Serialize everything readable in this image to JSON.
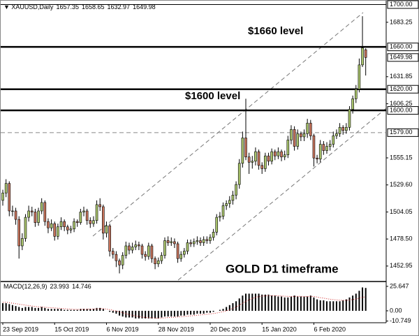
{
  "chart_data": {
    "type": "candlestick",
    "symbol": "XAUUSD,Daily",
    "annotations": [
      "$1660 level",
      "$1600 level",
      "GOLD D1 timeframe"
    ],
    "categories": [
      "23 Sep 2019",
      null,
      null,
      null,
      null,
      null,
      null,
      null,
      null,
      null,
      null,
      null,
      null,
      null,
      null,
      null,
      "15 Oct 2019",
      null,
      null,
      null,
      null,
      null,
      null,
      null,
      null,
      null,
      null,
      null,
      null,
      null,
      null,
      null,
      "6 Nov 2019",
      null,
      null,
      null,
      null,
      null,
      null,
      null,
      null,
      null,
      null,
      null,
      null,
      null,
      null,
      null,
      "28 Nov 2019",
      null,
      null,
      null,
      null,
      null,
      null,
      null,
      null,
      null,
      null,
      null,
      null,
      null,
      null,
      null,
      "20 Dec 2019",
      null,
      null,
      null,
      null,
      null,
      null,
      null,
      null,
      null,
      null,
      null,
      null,
      null,
      null,
      null,
      "15 Jan 2020",
      null,
      null,
      null,
      null,
      null,
      null,
      null,
      null,
      null,
      null,
      null,
      null,
      null,
      null,
      null,
      "6 Feb 2020",
      null,
      null,
      null,
      null,
      null,
      null,
      null,
      null,
      null,
      null,
      null,
      null,
      null,
      null,
      null,
      null
    ],
    "ohlc": [
      [
        1515,
        1525,
        1510,
        1522
      ],
      [
        1522,
        1535,
        1518,
        1531
      ],
      [
        1531,
        1533,
        1500,
        1505
      ],
      [
        1505,
        1510,
        1500,
        1505
      ],
      [
        1505,
        1508,
        1492,
        1497
      ],
      [
        1497,
        1500,
        1460,
        1472
      ],
      [
        1472,
        1484,
        1468,
        1479
      ],
      [
        1479,
        1502,
        1476,
        1499
      ],
      [
        1499,
        1510,
        1495,
        1505
      ],
      [
        1505,
        1509,
        1500,
        1504
      ],
      [
        1504,
        1507,
        1490,
        1494
      ],
      [
        1494,
        1508,
        1491,
        1505
      ],
      [
        1505,
        1517,
        1502,
        1513
      ],
      [
        1513,
        1515,
        1491,
        1495
      ],
      [
        1495,
        1498,
        1484,
        1489
      ],
      [
        1489,
        1497,
        1486,
        1493
      ],
      [
        1493,
        1495,
        1477,
        1481
      ],
      [
        1481,
        1493,
        1478,
        1490
      ],
      [
        1490,
        1499,
        1487,
        1495
      ],
      [
        1495,
        1497,
        1486,
        1490
      ],
      [
        1490,
        1492,
        1483,
        1487
      ],
      [
        1487,
        1491,
        1484,
        1488
      ],
      [
        1488,
        1498,
        1485,
        1495
      ],
      [
        1495,
        1497,
        1490,
        1494
      ],
      [
        1494,
        1507,
        1492,
        1504
      ],
      [
        1504,
        1509,
        1500,
        1505
      ],
      [
        1505,
        1507,
        1492,
        1496
      ],
      [
        1496,
        1499,
        1489,
        1493
      ],
      [
        1493,
        1500,
        1490,
        1496
      ],
      [
        1496,
        1515,
        1493,
        1511
      ],
      [
        1511,
        1517,
        1505,
        1509
      ],
      [
        1509,
        1511,
        1478,
        1484
      ],
      [
        1484,
        1495,
        1480,
        1491
      ],
      [
        1491,
        1493,
        1462,
        1467
      ],
      [
        1467,
        1470,
        1460,
        1464
      ],
      [
        1464,
        1467,
        1452,
        1458
      ],
      [
        1458,
        1460,
        1446,
        1454
      ],
      [
        1454,
        1466,
        1450,
        1463
      ],
      [
        1463,
        1476,
        1460,
        1472
      ],
      [
        1472,
        1475,
        1464,
        1468
      ],
      [
        1468,
        1475,
        1465,
        1471
      ],
      [
        1471,
        1477,
        1468,
        1473
      ],
      [
        1473,
        1476,
        1468,
        1472
      ],
      [
        1472,
        1474,
        1460,
        1464
      ],
      [
        1464,
        1467,
        1458,
        1462
      ],
      [
        1462,
        1475,
        1459,
        1472
      ],
      [
        1472,
        1474,
        1456,
        1460
      ],
      [
        1460,
        1462,
        1450,
        1455
      ],
      [
        1455,
        1461,
        1452,
        1458
      ],
      [
        1458,
        1466,
        1455,
        1463
      ],
      [
        1463,
        1480,
        1460,
        1477
      ],
      [
        1477,
        1481,
        1472,
        1475
      ],
      [
        1475,
        1480,
        1472,
        1476
      ],
      [
        1476,
        1479,
        1470,
        1474
      ],
      [
        1474,
        1476,
        1456,
        1460
      ],
      [
        1460,
        1467,
        1457,
        1464
      ],
      [
        1464,
        1470,
        1461,
        1467
      ],
      [
        1467,
        1478,
        1464,
        1475
      ],
      [
        1475,
        1478,
        1471,
        1474
      ],
      [
        1474,
        1479,
        1471,
        1476
      ],
      [
        1476,
        1481,
        1473,
        1477
      ],
      [
        1477,
        1480,
        1472,
        1475
      ],
      [
        1475,
        1481,
        1472,
        1478
      ],
      [
        1478,
        1481,
        1474,
        1477
      ],
      [
        1477,
        1483,
        1474,
        1480
      ],
      [
        1480,
        1488,
        1477,
        1485
      ],
      [
        1485,
        1502,
        1482,
        1499
      ],
      [
        1499,
        1504,
        1495,
        1500
      ],
      [
        1500,
        1513,
        1497,
        1510
      ],
      [
        1510,
        1515,
        1506,
        1512
      ],
      [
        1512,
        1519,
        1508,
        1515
      ],
      [
        1515,
        1524,
        1511,
        1520
      ],
      [
        1520,
        1533,
        1516,
        1530
      ],
      [
        1530,
        1554,
        1526,
        1550
      ],
      [
        1550,
        1580,
        1546,
        1574
      ],
      [
        1574,
        1611,
        1553,
        1556
      ],
      [
        1556,
        1560,
        1540,
        1551
      ],
      [
        1551,
        1557,
        1545,
        1552
      ],
      [
        1552,
        1565,
        1548,
        1561
      ],
      [
        1561,
        1563,
        1544,
        1548
      ],
      [
        1548,
        1551,
        1540,
        1545
      ],
      [
        1545,
        1560,
        1542,
        1557
      ],
      [
        1557,
        1560,
        1548,
        1552
      ],
      [
        1552,
        1564,
        1549,
        1561
      ],
      [
        1561,
        1563,
        1553,
        1557
      ],
      [
        1557,
        1565,
        1554,
        1561
      ],
      [
        1561,
        1563,
        1552,
        1556
      ],
      [
        1556,
        1562,
        1553,
        1558
      ],
      [
        1558,
        1576,
        1555,
        1572
      ],
      [
        1572,
        1586,
        1568,
        1582
      ],
      [
        1582,
        1585,
        1562,
        1566
      ],
      [
        1566,
        1582,
        1563,
        1578
      ],
      [
        1578,
        1580,
        1571,
        1575
      ],
      [
        1575,
        1582,
        1571,
        1578
      ],
      [
        1578,
        1592,
        1574,
        1588
      ],
      [
        1588,
        1591,
        1572,
        1576
      ],
      [
        1576,
        1578,
        1547,
        1555
      ],
      [
        1555,
        1558,
        1550,
        1554
      ],
      [
        1554,
        1572,
        1551,
        1568
      ],
      [
        1568,
        1571,
        1558,
        1562
      ],
      [
        1562,
        1570,
        1559,
        1566
      ],
      [
        1566,
        1572,
        1562,
        1568
      ],
      [
        1568,
        1580,
        1565,
        1576
      ],
      [
        1576,
        1582,
        1573,
        1578
      ],
      [
        1578,
        1588,
        1575,
        1584
      ],
      [
        1584,
        1586,
        1577,
        1581
      ],
      [
        1581,
        1588,
        1578,
        1584
      ],
      [
        1584,
        1604,
        1581,
        1601
      ],
      [
        1601,
        1614,
        1597,
        1611
      ],
      [
        1611,
        1624,
        1607,
        1620
      ],
      [
        1620,
        1649,
        1617,
        1643
      ],
      [
        1643,
        1689,
        1641,
        1659
      ],
      [
        1657.35,
        1658.65,
        1632.97,
        1649.98
      ]
    ],
    "up_color": "#a9c46c",
    "down_color": "#c8745c",
    "ylim": [
      1439,
      1701
    ],
    "yticks": [
      1683.25,
      1631.85,
      1606.25,
      1555.15,
      {
        "value": 1529.6,
        "label": "1529.60"
      },
      1504.05,
      {
        "value": 1478.5,
        "label": "1478.50"
      },
      1452.95
    ],
    "levels": [
      {
        "value": 1700,
        "label": "1700.00",
        "style": "thin"
      },
      {
        "value": 1660,
        "label": "1660.00",
        "style": "thick"
      },
      {
        "value": 1620,
        "label": "1620.00",
        "style": "thick"
      },
      {
        "value": 1600,
        "label": "1600.00",
        "style": "thick"
      },
      {
        "value": 1579,
        "label": "1579.00",
        "style": "dashed"
      }
    ],
    "macd": {
      "name": "MACD(12,26,9)",
      "ylim": [
        -12.5,
        30
      ],
      "yticks": [
        25.647,
        {
          "value": 0,
          "label": "0.00"
        },
        -10.749
      ],
      "histogram_color": "#000000",
      "signal_color": "#d02020",
      "histogram": [
        8,
        8,
        7,
        6,
        5,
        4,
        3,
        4,
        4,
        4,
        3,
        3,
        4,
        3,
        2,
        2,
        2,
        2,
        2,
        1,
        1,
        1,
        1,
        1,
        2,
        2,
        2,
        2,
        2,
        3,
        3,
        2,
        0,
        -1,
        -2,
        -3,
        -5,
        -6,
        -7,
        -7,
        -7,
        -8,
        -8,
        -8,
        -8,
        -8,
        -8,
        -8,
        -8,
        -7,
        -6,
        -6,
        -6,
        -6,
        -6,
        -5,
        -5,
        -4,
        -4,
        -4,
        -3,
        -3,
        -3,
        -2,
        -2,
        -1,
        0,
        1,
        2,
        4,
        6,
        8,
        10,
        13,
        16,
        18,
        18,
        18,
        18,
        18,
        17,
        17,
        17,
        16,
        16,
        15,
        15,
        14,
        14,
        15,
        16,
        15,
        15,
        15,
        15,
        16,
        14,
        12,
        11,
        11,
        10,
        10,
        10,
        10,
        10,
        11,
        12,
        14,
        16,
        18,
        21,
        24.5,
        23.993
      ],
      "signal": [
        9,
        9,
        8.5,
        8,
        7.5,
        7,
        6.5,
        6,
        5.5,
        5,
        4.5,
        4.2,
        4,
        3.8,
        3.5,
        3.2,
        3,
        2.8,
        2.5,
        2.2,
        2,
        1.8,
        1.6,
        1.5,
        1.5,
        1.6,
        1.7,
        1.8,
        1.9,
        2,
        2.2,
        2.2,
        1.8,
        1.3,
        0.6,
        -0.2,
        -1,
        -2,
        -3,
        -4,
        -4.8,
        -5.5,
        -6,
        -6.5,
        -7,
        -7.2,
        -7.4,
        -7.6,
        -7.7,
        -7.6,
        -7.4,
        -7.1,
        -6.9,
        -6.7,
        -6.5,
        -6.2,
        -5.9,
        -5.6,
        -5.3,
        -5,
        -4.6,
        -4.3,
        -4,
        -3.6,
        -3.3,
        -2.8,
        -2.3,
        -1.6,
        -0.9,
        0,
        1.2,
        2.6,
        4.1,
        5.9,
        8,
        10,
        11.6,
        13,
        14,
        15,
        15.4,
        15.7,
        15.9,
        15.9,
        15.9,
        15.7,
        15.6,
        15.3,
        15.1,
        15,
        15.1,
        15.1,
        15.1,
        15,
        15,
        15.2,
        15,
        14.5,
        13.8,
        13.3,
        12.7,
        12.2,
        11.8,
        11.4,
        11.1,
        11,
        11,
        11.2,
        11.8,
        12.4,
        13.3,
        14.2,
        14.746
      ]
    }
  }
}
